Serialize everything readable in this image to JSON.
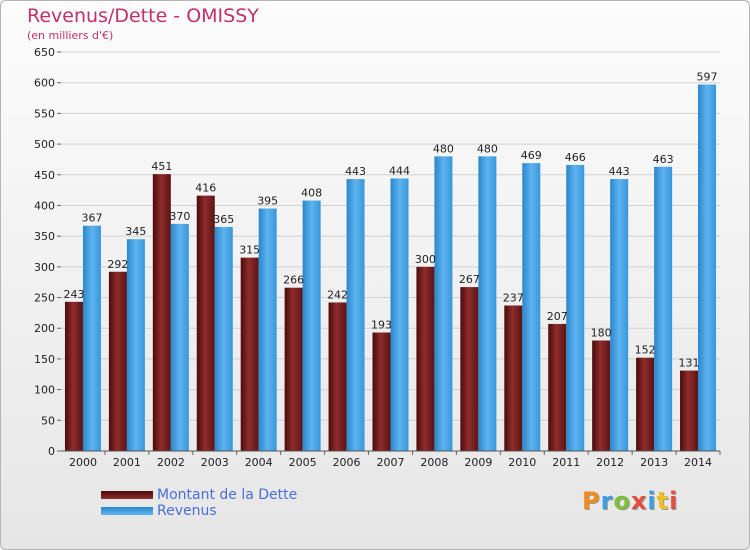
{
  "title": "Revenus/Dette - OMISSY",
  "subtitle": "(en milliers d'€)",
  "logo_text": "Proxiti",
  "colors": {
    "debt": "#7a1f1f",
    "revenue": "#3d9de0",
    "title": "#c0306b",
    "legend_text": "#4a6ed8"
  },
  "chart_data": {
    "type": "bar",
    "categories": [
      "2000",
      "2001",
      "2002",
      "2003",
      "2004",
      "2005",
      "2006",
      "2007",
      "2008",
      "2009",
      "2010",
      "2011",
      "2012",
      "2013",
      "2014"
    ],
    "series": [
      {
        "name": "Montant de la Dette",
        "values": [
          243,
          292,
          451,
          416,
          315,
          266,
          242,
          193,
          300,
          267,
          237,
          207,
          180,
          152,
          131
        ]
      },
      {
        "name": "Revenus",
        "values": [
          367,
          345,
          370,
          365,
          395,
          408,
          443,
          444,
          480,
          480,
          469,
          466,
          443,
          463,
          597
        ]
      }
    ],
    "yticks": [
      0,
      50,
      100,
      150,
      200,
      250,
      300,
      350,
      400,
      450,
      500,
      550,
      600,
      650
    ],
    "ylim": [
      0,
      650
    ],
    "grid": true,
    "legend_position": "bottom-left"
  }
}
